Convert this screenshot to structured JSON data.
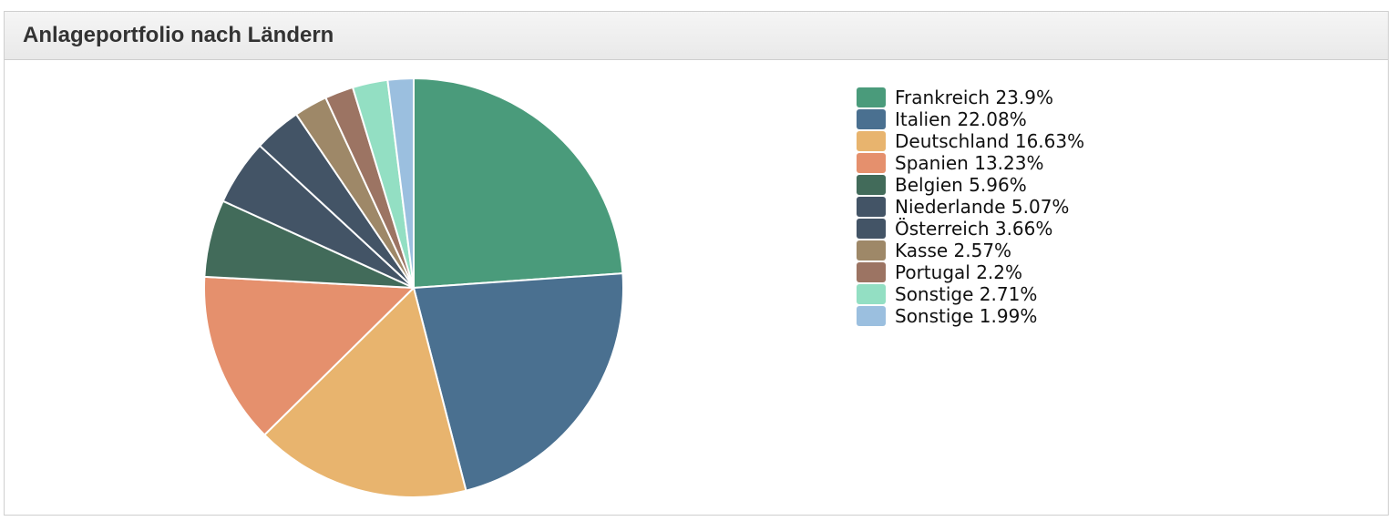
{
  "panel": {
    "title": "Anlageportfolio nach Ländern"
  },
  "chart_data": {
    "type": "pie",
    "title": "Anlageportfolio nach Ländern",
    "start_angle_deg": 0,
    "direction": "clockwise",
    "legend_position": "right",
    "unit": "%",
    "slices": [
      {
        "label": "Frankreich",
        "value": 23.9,
        "value_label": "23.9%",
        "color": "#4a9b7b"
      },
      {
        "label": "Italien",
        "value": 22.08,
        "value_label": "22.08%",
        "color": "#4a7090"
      },
      {
        "label": "Deutschland",
        "value": 16.63,
        "value_label": "16.63%",
        "color": "#e8b46e"
      },
      {
        "label": "Spanien",
        "value": 13.23,
        "value_label": "13.23%",
        "color": "#e5906d"
      },
      {
        "label": "Belgien",
        "value": 5.96,
        "value_label": "5.96%",
        "color": "#426b5a"
      },
      {
        "label": "Niederlande",
        "value": 5.07,
        "value_label": "5.07%",
        "color": "#435466"
      },
      {
        "label": "Österreich",
        "value": 3.66,
        "value_label": "3.66%",
        "color": "#435466"
      },
      {
        "label": "Kasse",
        "value": 2.57,
        "value_label": "2.57%",
        "color": "#9e8868"
      },
      {
        "label": "Portugal",
        "value": 2.2,
        "value_label": "2.2%",
        "color": "#9c7463"
      },
      {
        "label": "Sonstige",
        "value": 2.71,
        "value_label": "2.71%",
        "color": "#93dfc3"
      },
      {
        "label": "Sonstige",
        "value": 1.99,
        "value_label": "1.99%",
        "color": "#9bbfdf"
      }
    ]
  }
}
